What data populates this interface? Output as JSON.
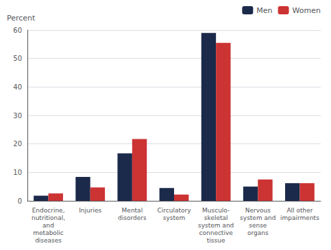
{
  "chart_data": {
    "type": "bar",
    "ylabel": "Percent",
    "categories": [
      "Endocrine,\nnutritional,\nand\nmetabolic\ndiseases",
      "Injuries",
      "Mental\ndisorders",
      "Circulatory\nsystem",
      "Musculo-\nskeletal\nsystem and\nconnective\ntissue",
      "Nervous\nsystem and\nsense\norgans",
      "All other\nimpairments"
    ],
    "series": [
      {
        "name": "Men",
        "color": "#1b2a4a",
        "values": [
          1.8,
          8.4,
          16.7,
          4.5,
          59.0,
          5.0,
          6.2
        ]
      },
      {
        "name": "Women",
        "color": "#cc3333",
        "values": [
          2.6,
          4.7,
          21.7,
          2.2,
          55.5,
          7.5,
          6.2
        ]
      }
    ],
    "ylim": [
      0,
      60
    ],
    "yticks": [
      0,
      10,
      20,
      30,
      40,
      50,
      60
    ],
    "grid": true,
    "legend": "upper right"
  }
}
